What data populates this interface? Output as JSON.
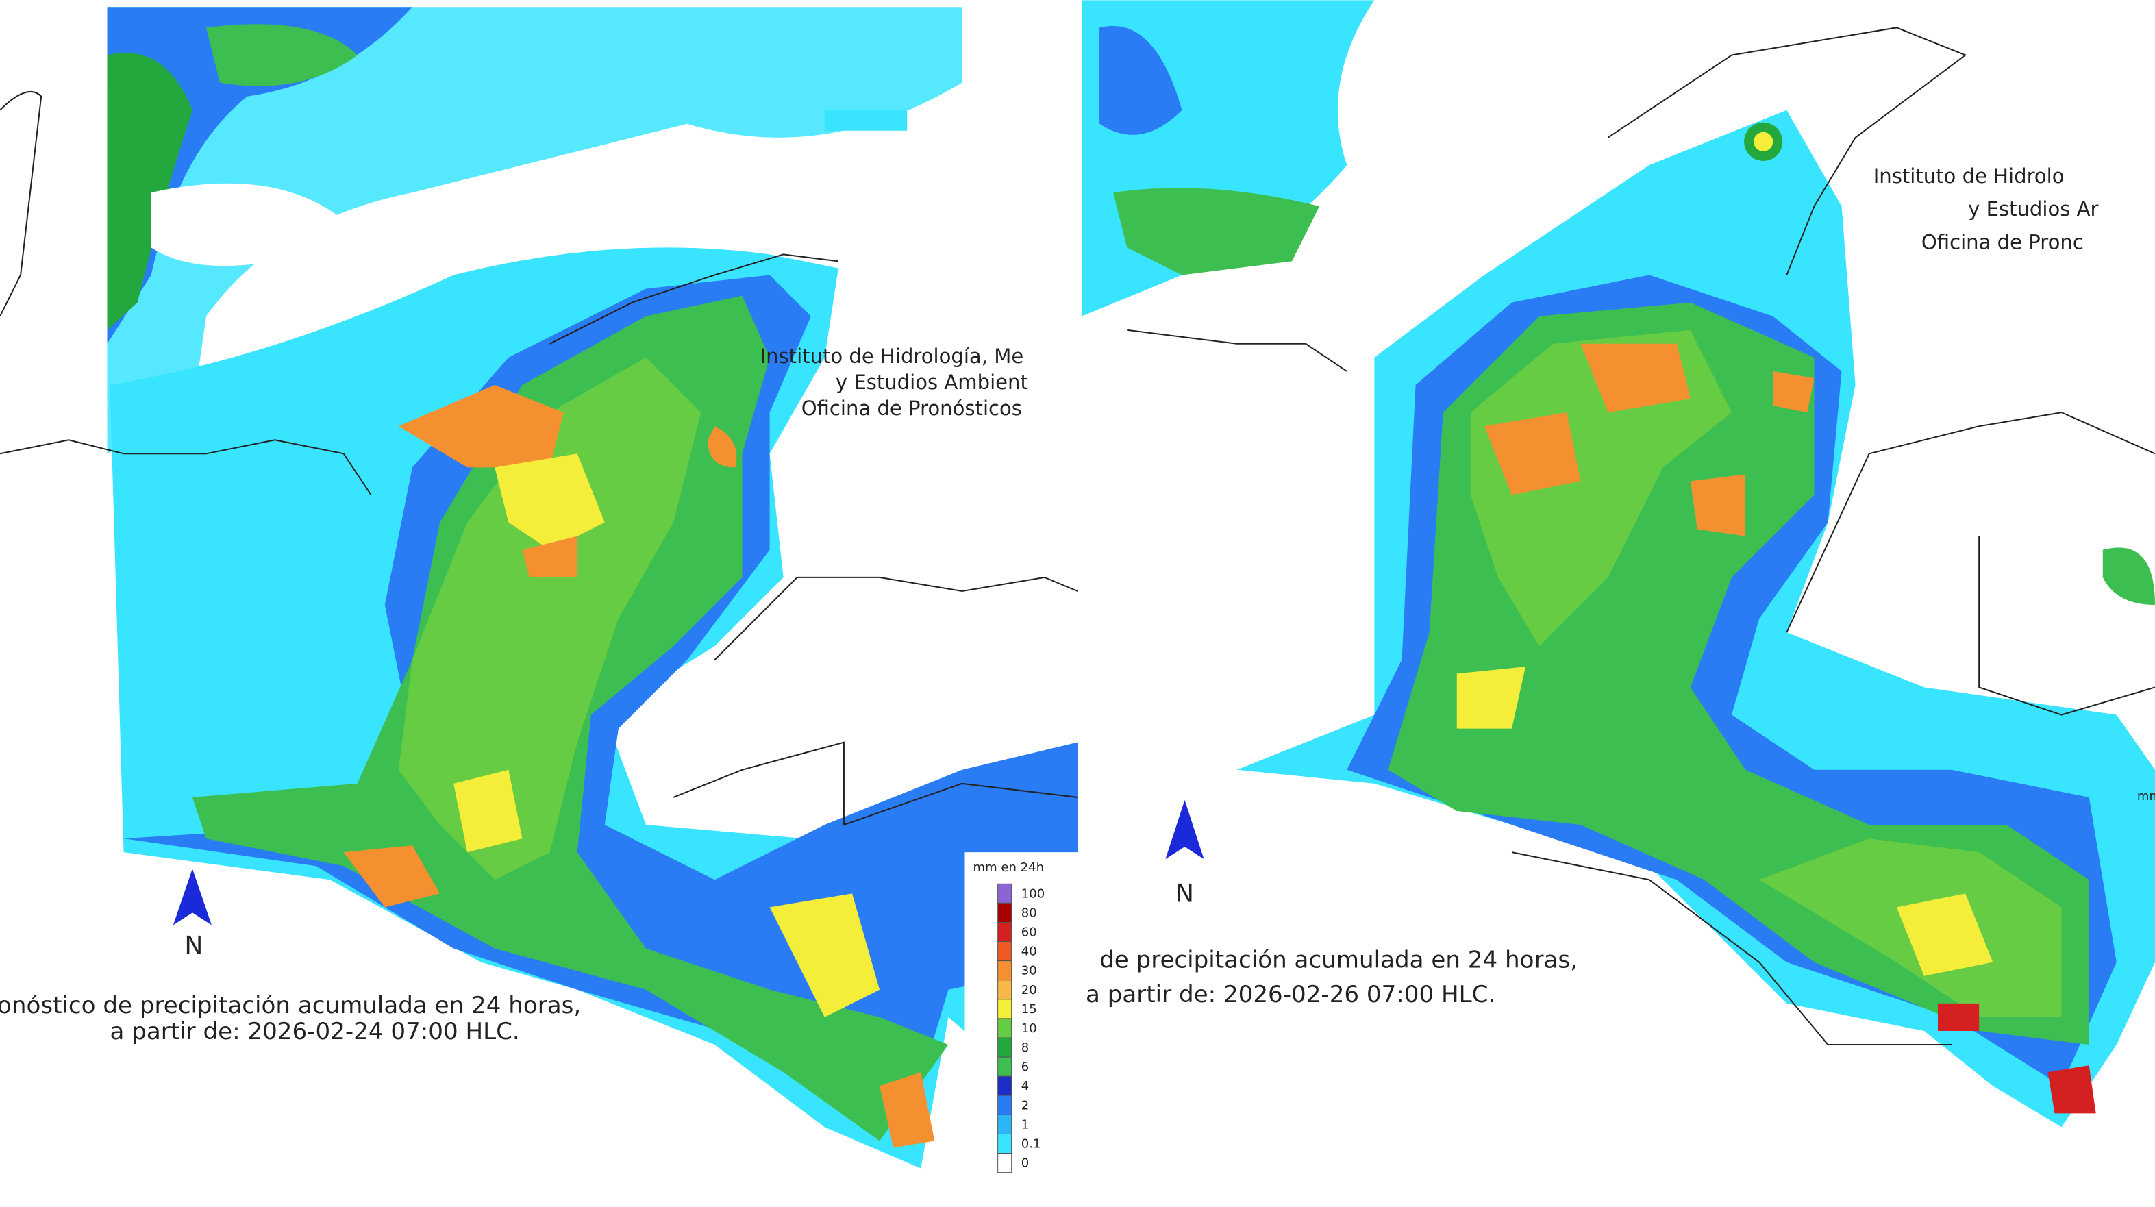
{
  "left_panel": {
    "institute_lines": [
      "Instituto de Hidrología, Me",
      "y Estudios Ambient",
      "Oficina de Pronósticos"
    ],
    "north_label": "N",
    "caption_lines": [
      "onóstico de precipitación acumulada en 24 horas,",
      "a partir de: 2026-02-24 07:00 HLC."
    ],
    "legend": {
      "title": "mm en 24h",
      "items": [
        {
          "label": "100",
          "color": "#8e63d6"
        },
        {
          "label": "80",
          "color": "#a80000"
        },
        {
          "label": "60",
          "color": "#d42020"
        },
        {
          "label": "40",
          "color": "#ee5a26"
        },
        {
          "label": "30",
          "color": "#f59030"
        },
        {
          "label": "20",
          "color": "#f8b848"
        },
        {
          "label": "15",
          "color": "#f4ee3a"
        },
        {
          "label": "10",
          "color": "#66cc44"
        },
        {
          "label": "8",
          "color": "#22a83c"
        },
        {
          "label": "6",
          "color": "#3cbf50"
        },
        {
          "label": "4",
          "color": "#1c2ec8"
        },
        {
          "label": "2",
          "color": "#2a7cf4"
        },
        {
          "label": "1",
          "color": "#2cb6f8"
        },
        {
          "label": "0.1",
          "color": "#38e4ff"
        },
        {
          "label": "0",
          "color": "#ffffff"
        }
      ]
    }
  },
  "right_panel": {
    "institute_lines": [
      "Instituto de Hidrolo",
      "y Estudios Ar",
      "Oficina de Pronc"
    ],
    "north_label": "N",
    "caption_lines": [
      "de precipitación acumulada en 24 horas,",
      "a partir de: 2026-02-26 07:00 HLC."
    ],
    "legend_title": "mm"
  }
}
